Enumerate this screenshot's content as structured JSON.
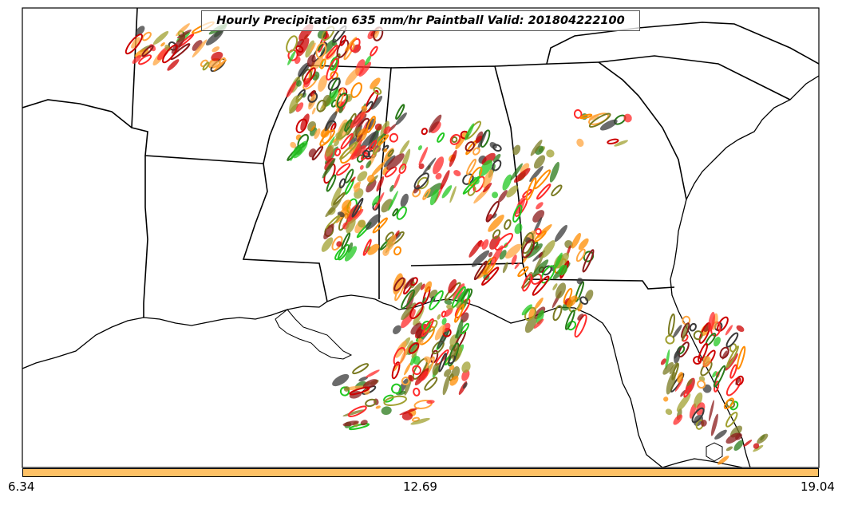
{
  "map": {
    "title": "Hourly Precipitation 635 mm/hr Paintball Valid: 201804222100",
    "colorbar": {
      "color": "#ffc266",
      "ticks": [
        "6.34",
        "12.69",
        "19.04"
      ]
    },
    "colors": {
      "frame": "#000000",
      "background": "#ffffff",
      "paintball_members": [
        "#ff2a2a",
        "#ff8c00",
        "#ffa640",
        "#22c822",
        "#2a7a1a",
        "#7a7a22",
        "#8b1a1a",
        "#3a3a3a",
        "#cc0000",
        "#a0a030"
      ]
    }
  }
}
